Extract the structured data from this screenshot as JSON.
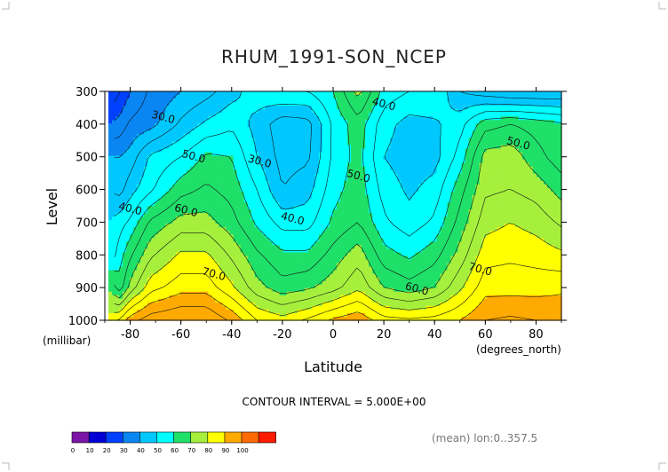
{
  "chart_data": {
    "type": "heatmap",
    "title": "RHUM_1991-SON_NCEP",
    "xlabel": "Latitude",
    "ylabel": "Level",
    "x_units": "(degrees_north)",
    "y_units": "(millibar)",
    "xlim": [
      -90,
      90
    ],
    "ylim": [
      1000,
      300
    ],
    "x_ticks": [
      "-80",
      "-60",
      "-40",
      "-20",
      "0",
      "20",
      "40",
      "60",
      "80"
    ],
    "x_tick_values": [
      -80,
      -60,
      -40,
      -20,
      0,
      20,
      40,
      60,
      80
    ],
    "y_ticks": [
      "300",
      "400",
      "500",
      "600",
      "700",
      "800",
      "900",
      "1000"
    ],
    "y_tick_values": [
      300,
      400,
      500,
      600,
      700,
      800,
      900,
      1000
    ],
    "contour_interval_text": "CONTOUR INTERVAL = 5.000E+00",
    "footer_text": "(mean) lon:0..357.5",
    "contour_labels": [
      {
        "text": "30.0",
        "lat": -67,
        "level": 380
      },
      {
        "text": "40.0",
        "lat": 20,
        "level": 340
      },
      {
        "text": "50.0",
        "lat": 73,
        "level": 460
      },
      {
        "text": "50.0",
        "lat": -55,
        "level": 500
      },
      {
        "text": "30.0",
        "lat": -29,
        "level": 515
      },
      {
        "text": "50.0",
        "lat": 10,
        "level": 560
      },
      {
        "text": "40.0",
        "lat": -80,
        "level": 660
      },
      {
        "text": "60.0",
        "lat": -58,
        "level": 665
      },
      {
        "text": "40.0",
        "lat": -16,
        "level": 690
      },
      {
        "text": "70.0",
        "lat": -47,
        "level": 860
      },
      {
        "text": "70.0",
        "lat": 58,
        "level": 845
      },
      {
        "text": "60.0",
        "lat": 33,
        "level": 905
      }
    ],
    "x_samples": [
      -88,
      -84,
      -80,
      -72,
      -60,
      -50,
      -40,
      -30,
      -20,
      -10,
      0,
      10,
      20,
      30,
      40,
      50,
      60,
      70,
      80,
      90
    ],
    "y_samples": [
      300,
      400,
      500,
      600,
      700,
      800,
      900,
      1000
    ],
    "values": [
      [
        10,
        15,
        20,
        26,
        30,
        33,
        38,
        43,
        45,
        45,
        50,
        62,
        48,
        45,
        45,
        35,
        32,
        30,
        30,
        30
      ],
      [
        20,
        22,
        26,
        28,
        36,
        41,
        44,
        38,
        32,
        33,
        46,
        53,
        42,
        38,
        39,
        43,
        53,
        55,
        53,
        51
      ],
      [
        30,
        30,
        32,
        41,
        45,
        51,
        50,
        40,
        33,
        34,
        46,
        52,
        40,
        37,
        38,
        47,
        62,
        63,
        57,
        52
      ],
      [
        35,
        33,
        38,
        44,
        53,
        56,
        53,
        45,
        35,
        38,
        48,
        53,
        43,
        39,
        42,
        53,
        64,
        65,
        63,
        58
      ],
      [
        40,
        43,
        46,
        56,
        62,
        62,
        57,
        49,
        43,
        43,
        51,
        55,
        46,
        42,
        46,
        57,
        68,
        70,
        68,
        64
      ],
      [
        41,
        48,
        54,
        64,
        71,
        71,
        64,
        56,
        51,
        51,
        57,
        63,
        52,
        49,
        53,
        62,
        73,
        74,
        73,
        71
      ],
      [
        59,
        52,
        62,
        73,
        78,
        78,
        71,
        62,
        57,
        59,
        63,
        69,
        60,
        57,
        60,
        69,
        78,
        78,
        78,
        79
      ],
      [
        73,
        76,
        83,
        88,
        90,
        90,
        84,
        75,
        72,
        76,
        81,
        84,
        77,
        76,
        77,
        80,
        85,
        86,
        85,
        84
      ]
    ],
    "color_levels": [
      0,
      10,
      20,
      30,
      40,
      50,
      60,
      70,
      80,
      90,
      100
    ],
    "colorbar_labels": [
      "0",
      "10",
      "20",
      "30",
      "40",
      "50",
      "60",
      "70",
      "80",
      "90",
      "100"
    ],
    "colors": [
      "#7b16a6",
      "#0000d6",
      "#0040ff",
      "#0a86f2",
      "#00c8ff",
      "#00ffff",
      "#1fe069",
      "#a6f03d",
      "#ffff00",
      "#ffaa00",
      "#ff6a00",
      "#ff1a00"
    ]
  }
}
